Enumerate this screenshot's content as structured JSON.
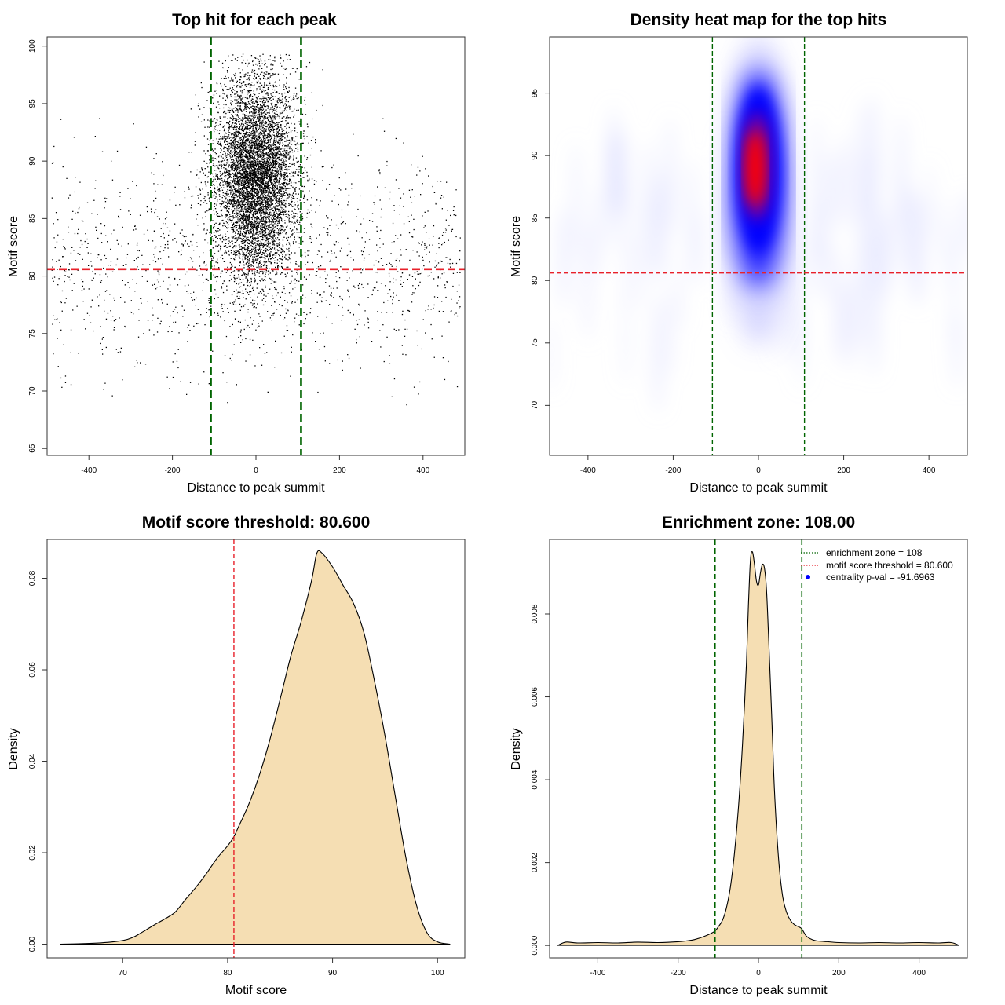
{
  "colors": {
    "zone_line": "#006400",
    "threshold_line": "#e8202a",
    "density_fill": "#f5deb3",
    "point": "#000000",
    "heat_low": "#ffffff",
    "heat_mid": "#0000ff",
    "heat_high": "#ff0000",
    "legend_point": "#0000ff"
  },
  "chart_data": [
    {
      "type": "scatter",
      "title": "Top hit for each peak",
      "xlabel": "Distance to peak summit",
      "ylabel": "Motif score",
      "xlim": [
        -500,
        500
      ],
      "ylim": [
        64.4,
        100.8
      ],
      "xticks": [
        -400,
        -200,
        0,
        200,
        400
      ],
      "yticks": [
        65,
        70,
        75,
        80,
        85,
        90,
        95,
        100
      ],
      "vlines": [
        -108,
        108
      ],
      "hline": 80.6,
      "central_cluster": {
        "x_center": 0,
        "x_sd": 48,
        "y_center": 88.8,
        "y_sd": 4.2,
        "y_range": [
          72,
          99.3
        ]
      },
      "background_points": {
        "x_range": [
          -490,
          490
        ],
        "y_center": 81,
        "y_sd": 4.5,
        "y_range": [
          68.8,
          97.5
        ]
      },
      "grid": false
    },
    {
      "type": "heatmap",
      "title": "Density heat map for the top hits",
      "xlabel": "Distance to peak summit",
      "ylabel": "Motif score",
      "xlim": [
        -490,
        490
      ],
      "ylim": [
        66,
        99.5
      ],
      "xticks": [
        -400,
        -200,
        0,
        200,
        400
      ],
      "yticks": [
        70,
        75,
        80,
        85,
        90,
        95
      ],
      "vlines": [
        -108,
        108
      ],
      "hline": 80.6,
      "peak": {
        "x": 0,
        "y": 88.5
      },
      "color_scale": [
        "white",
        "blue",
        "red"
      ],
      "grid": false
    },
    {
      "type": "area",
      "title": "Motif score threshold: 80.600",
      "xlabel": "Motif score",
      "ylabel": "Density",
      "xlim": [
        62.8,
        102.6
      ],
      "ylim": [
        -0.003,
        0.0885
      ],
      "xticks": [
        70,
        80,
        90,
        100
      ],
      "yticks": [
        0.0,
        0.02,
        0.04,
        0.06,
        0.08
      ],
      "ytick_labels": [
        "0.00",
        "0.02",
        "0.04",
        "0.06",
        "0.08"
      ],
      "vline": 80.6,
      "x": [
        64,
        66,
        68,
        70,
        71,
        72,
        73,
        74,
        75,
        76,
        77,
        78,
        79,
        80,
        80.6,
        81,
        82,
        83,
        84,
        85,
        86,
        87,
        88,
        88.5,
        89,
        90,
        91,
        92,
        93,
        94,
        95,
        96,
        97,
        98,
        99,
        100,
        101.2
      ],
      "y": [
        0.0,
        0.0001,
        0.0003,
        0.0008,
        0.0015,
        0.0028,
        0.0042,
        0.0055,
        0.007,
        0.0098,
        0.0125,
        0.0155,
        0.0188,
        0.0215,
        0.0235,
        0.0255,
        0.0305,
        0.0368,
        0.0445,
        0.0535,
        0.0628,
        0.0705,
        0.0795,
        0.0855,
        0.0855,
        0.0825,
        0.0785,
        0.0745,
        0.068,
        0.0575,
        0.0455,
        0.032,
        0.0188,
        0.0085,
        0.0025,
        0.0005,
        0.0
      ],
      "grid": false
    },
    {
      "type": "area",
      "title": "Enrichment zone: 108.00",
      "xlabel": "Distance to peak summit",
      "ylabel": "Density",
      "xlim": [
        -520,
        520
      ],
      "ylim": [
        -0.0003,
        0.0098
      ],
      "xticks": [
        -400,
        -200,
        0,
        200,
        400
      ],
      "yticks": [
        0.0,
        0.002,
        0.004,
        0.006,
        0.008
      ],
      "ytick_labels": [
        "0.000",
        "0.002",
        "0.004",
        "0.006",
        "0.008"
      ],
      "vlines": [
        -108,
        108
      ],
      "x": [
        -500,
        -480,
        -450,
        -400,
        -350,
        -300,
        -250,
        -200,
        -180,
        -160,
        -140,
        -120,
        -108,
        -100,
        -90,
        -80,
        -70,
        -60,
        -50,
        -40,
        -30,
        -25,
        -20,
        -15,
        -10,
        -5,
        0,
        5,
        10,
        15,
        20,
        25,
        30,
        35,
        40,
        50,
        60,
        70,
        80,
        90,
        100,
        108,
        120,
        140,
        160,
        200,
        250,
        300,
        350,
        400,
        450,
        480,
        500
      ],
      "y": [
        0.0,
        8e-05,
        6e-05,
        7e-05,
        6e-05,
        8e-05,
        7e-05,
        9e-05,
        0.00011,
        0.00014,
        0.0002,
        0.00028,
        0.00035,
        0.00045,
        0.0006,
        0.0009,
        0.0014,
        0.0022,
        0.0033,
        0.0048,
        0.0068,
        0.0082,
        0.0093,
        0.0095,
        0.0092,
        0.0088,
        0.0087,
        0.009,
        0.0092,
        0.0091,
        0.0086,
        0.0075,
        0.0063,
        0.005,
        0.0037,
        0.0021,
        0.0012,
        0.0008,
        0.0006,
        0.0005,
        0.00045,
        0.0004,
        0.00022,
        0.00012,
        0.0001,
        7e-05,
        6e-05,
        7e-05,
        6e-05,
        7e-05,
        6e-05,
        7e-05,
        0.0
      ],
      "legend": {
        "placement": "top-right",
        "entries": [
          {
            "label": "enrichment zone = 108",
            "style": "dotted-line",
            "color": "#006400"
          },
          {
            "label": "motif score threshold = 80.600",
            "style": "dotted-line",
            "color": "#e8202a"
          },
          {
            "label": "centrality p-val = -91.6963",
            "style": "point",
            "color": "#0000ff"
          }
        ]
      },
      "grid": false
    }
  ]
}
